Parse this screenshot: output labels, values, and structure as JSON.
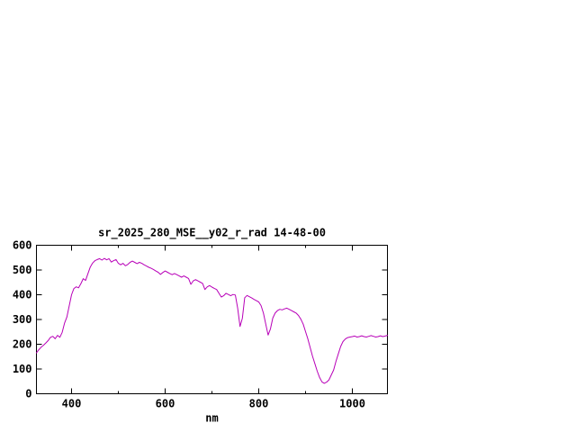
{
  "page": {
    "background": "#ffffff"
  },
  "chart_data": {
    "type": "line",
    "title": "sr_2025_280_MSE__y02_r_rad 14-48-00",
    "xlabel": "nm",
    "ylabel": "",
    "xlim": [
      325,
      1075
    ],
    "ylim": [
      0,
      600
    ],
    "yticks": [
      0,
      100,
      200,
      300,
      400,
      500,
      600
    ],
    "xticks_labeled": [
      400,
      600,
      800,
      1000
    ],
    "xticks_minor": [
      500,
      700,
      900
    ],
    "grid": false,
    "legend": "none",
    "line_color": "#b800b8",
    "series": [
      {
        "x_start": 325,
        "x_step": 5,
        "y": [
          165,
          178,
          188,
          196,
          205,
          215,
          228,
          232,
          222,
          236,
          228,
          248,
          285,
          310,
          355,
          400,
          425,
          432,
          428,
          445,
          465,
          458,
          485,
          512,
          528,
          538,
          542,
          546,
          540,
          547,
          541,
          546,
          532,
          538,
          542,
          527,
          521,
          527,
          517,
          522,
          531,
          536,
          531,
          526,
          531,
          527,
          521,
          516,
          511,
          507,
          502,
          496,
          491,
          482,
          490,
          496,
          491,
          486,
          481,
          486,
          481,
          476,
          471,
          476,
          471,
          466,
          442,
          456,
          461,
          456,
          451,
          446,
          421,
          432,
          437,
          431,
          426,
          421,
          406,
          391,
          396,
          406,
          401,
          396,
          401,
          399,
          345,
          272,
          305,
          388,
          397,
          392,
          387,
          381,
          376,
          371,
          356,
          326,
          281,
          237,
          262,
          306,
          326,
          336,
          341,
          339,
          343,
          346,
          341,
          336,
          331,
          326,
          316,
          301,
          281,
          251,
          221,
          186,
          151,
          121,
          91,
          66,
          48,
          42,
          47,
          56,
          76,
          96,
          131,
          161,
          191,
          211,
          221,
          227,
          229,
          231,
          233,
          229,
          231,
          234,
          231,
          229,
          232,
          235,
          232,
          229,
          231,
          234,
          231,
          233,
          236
        ]
      }
    ]
  },
  "layout_labels": {
    "plot_region": "bottom-left of canvas"
  }
}
